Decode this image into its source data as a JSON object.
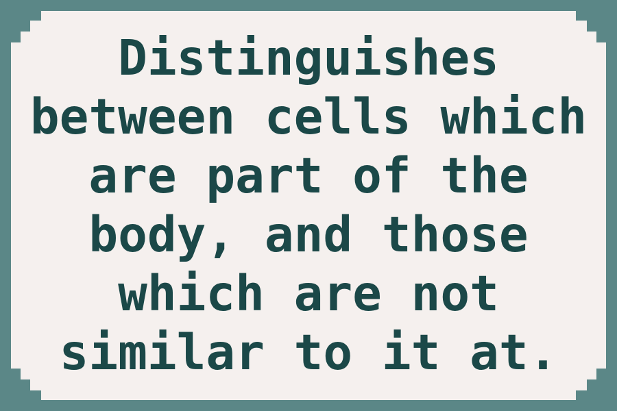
{
  "card": {
    "text": "Distinguishes\nbetween cells which\nare part of the\nbody, and those\nwhich are not\nsimilar to it at."
  },
  "colors": {
    "border": "#5b8787",
    "panel": "#f5f0ee",
    "text": "#1b4848"
  }
}
